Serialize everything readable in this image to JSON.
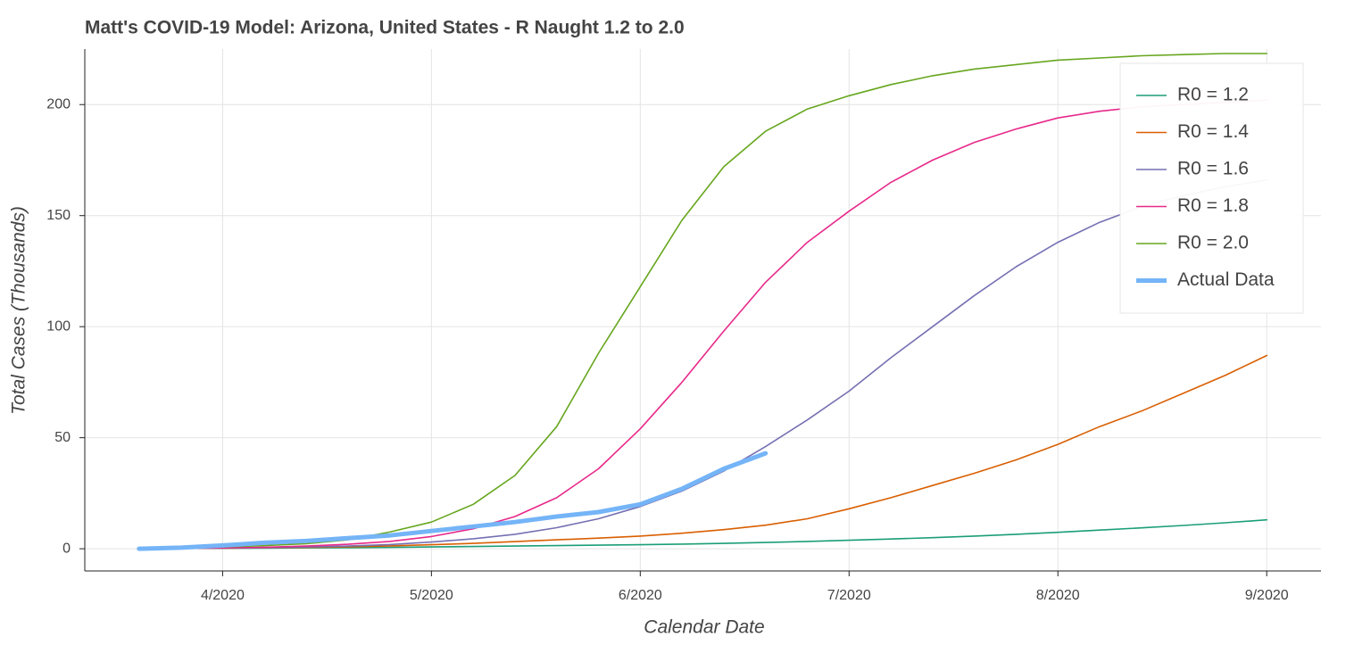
{
  "chart_data": {
    "type": "line",
    "title": "Matt's COVID-19 Model: Arizona, United States - R Naught 1.2 to 2.0",
    "x_label": "Calendar Date",
    "y_label": "Total Cases (Thousands)",
    "x": [
      3.6,
      3.8,
      4.0,
      4.2,
      4.4,
      4.6,
      4.8,
      5.0,
      5.2,
      5.4,
      5.6,
      5.8,
      6.0,
      6.2,
      6.4,
      6.6,
      6.8,
      7.0,
      7.2,
      7.4,
      7.6,
      7.8,
      8.0,
      8.2,
      8.4,
      8.6,
      8.8,
      9.0
    ],
    "series": [
      {
        "name": "R0 = 1.2",
        "color": "#1b9e77",
        "values": [
          0.1,
          0.15,
          0.2,
          0.3,
          0.4,
          0.5,
          0.6,
          0.8,
          1,
          1.2,
          1.4,
          1.6,
          1.8,
          2.1,
          2.4,
          2.8,
          3.3,
          3.8,
          4.4,
          5,
          5.7,
          6.5,
          7.4,
          8.4,
          9.4,
          10.5,
          11.7,
          13
        ]
      },
      {
        "name": "R0 = 1.4",
        "color": "#d95f02",
        "values": [
          0.1,
          0.15,
          0.25,
          0.4,
          0.6,
          0.9,
          1.3,
          1.8,
          2.4,
          3.2,
          4,
          4.8,
          5.7,
          7,
          8.6,
          10.6,
          13.5,
          18,
          23,
          28.5,
          34,
          40,
          47,
          55,
          62,
          70,
          78,
          87
        ]
      },
      {
        "name": "R0 = 1.6",
        "color": "#7570b3",
        "values": [
          0.1,
          0.2,
          0.3,
          0.5,
          0.8,
          1.2,
          1.9,
          3,
          4.5,
          6.5,
          9.5,
          13.5,
          19,
          26,
          35,
          46,
          58,
          71,
          86,
          100,
          114,
          127,
          138,
          147,
          154,
          159,
          163,
          166
        ]
      },
      {
        "name": "R0 = 1.8",
        "color": "#e7298a",
        "values": [
          0.1,
          0.2,
          0.4,
          0.7,
          1.2,
          2,
          3.3,
          5.5,
          9,
          14.5,
          23,
          36,
          54,
          75,
          98,
          120,
          138,
          152,
          165,
          175,
          183,
          189,
          194,
          197,
          199,
          200,
          201,
          202
        ]
      },
      {
        "name": "R0 = 2.0",
        "color": "#66a61e",
        "values": [
          0.2,
          0.4,
          0.8,
          1.4,
          2.3,
          4,
          7.5,
          12,
          20,
          33,
          55,
          88,
          118,
          148,
          172,
          188,
          198,
          204,
          209,
          213,
          216,
          218,
          220,
          221,
          222,
          222.5,
          223,
          223
        ]
      },
      {
        "name": "Actual Data",
        "color": "#74b4f7",
        "width": 5,
        "values": [
          0,
          0.5,
          1.5,
          2.7,
          3.5,
          4.8,
          6,
          8,
          10,
          12,
          14.5,
          16.5,
          20,
          27,
          36,
          43,
          null,
          null,
          null,
          null,
          null,
          null,
          null,
          null,
          null,
          null,
          null,
          null
        ]
      }
    ],
    "xlim": [
      3.34,
      9.26
    ],
    "xticks": [
      {
        "value": 4,
        "label": "4/2020"
      },
      {
        "value": 5,
        "label": "5/2020"
      },
      {
        "value": 6,
        "label": "6/2020"
      },
      {
        "value": 7,
        "label": "7/2020"
      },
      {
        "value": 8,
        "label": "8/2020"
      },
      {
        "value": 9,
        "label": "9/2020"
      }
    ],
    "ylim": [
      -10,
      225
    ],
    "yticks": [
      0,
      50,
      100,
      150,
      200
    ],
    "grid": true,
    "legend": "top-right"
  }
}
